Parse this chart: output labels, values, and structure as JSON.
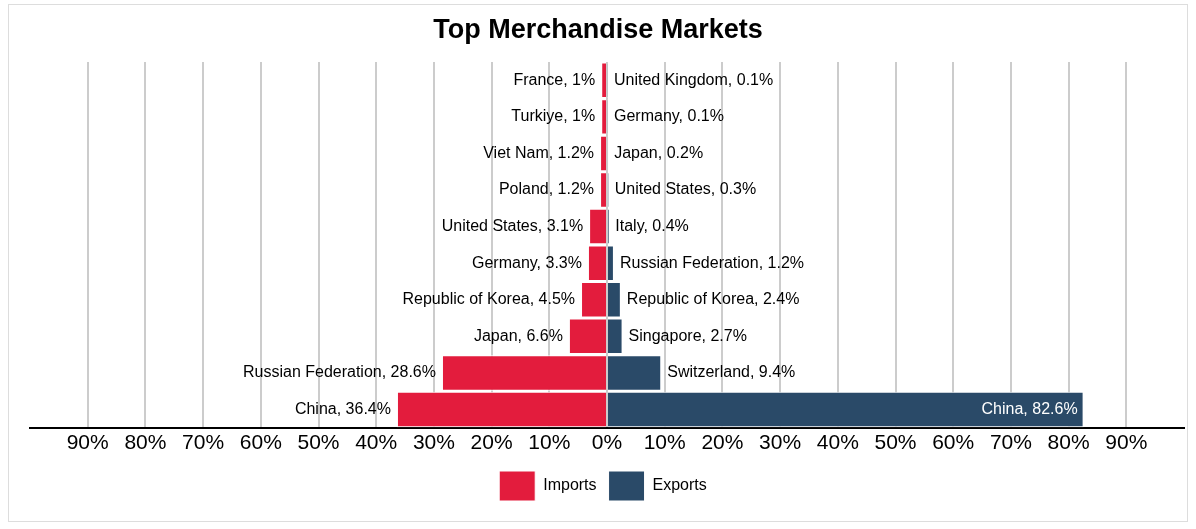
{
  "chart_data": {
    "type": "bar",
    "orientation": "horizontal",
    "title": "Top Merchandise Markets",
    "categories": [
      null,
      null,
      null,
      null,
      null,
      null,
      null,
      null,
      null,
      null
    ],
    "series": [
      {
        "name": "Imports",
        "color": "#e31c3d",
        "values": [
          1,
          1,
          1.2,
          1.2,
          3.1,
          3.3,
          4.5,
          6.6,
          28.6,
          36.4
        ],
        "base": [
          -1,
          -1,
          -1.2,
          -1.2,
          -3.1,
          -3.3,
          -4.5,
          -6.6,
          -28.6,
          -36.4
        ],
        "value_labels": [
          "France, 1%",
          "Turkiye, 1%",
          "Viet Nam, 1.2%",
          "Poland, 1.2%",
          "United States, 3.1%",
          "Germany, 3.3%",
          "Republic of Korea, 4.5%",
          "Japan, 6.6%",
          "Russian Federation, 28.6%",
          "China, 36.4%"
        ]
      },
      {
        "name": "Exports",
        "color": "#2a4a68",
        "values": [
          0.1,
          0.1,
          0.2,
          0.3,
          0.4,
          1.2,
          2.4,
          2.7,
          9.4,
          82.6
        ],
        "value_labels": [
          "United Kingdom, 0.1%",
          "Germany, 0.1%",
          "Japan, 0.2%",
          "United States, 0.3%",
          "Italy, 0.4%",
          "Russian Federation, 1.2%",
          "Republic of Korea, 2.4%",
          "Singapore, 2.7%",
          "Switzerland, 9.4%",
          "China, 82.6%"
        ]
      }
    ],
    "xlim": [
      -100,
      100
    ],
    "xticks": [
      {
        "value": -90,
        "label": "90%"
      },
      {
        "value": -80,
        "label": "80%"
      },
      {
        "value": -70,
        "label": "70%"
      },
      {
        "value": -60,
        "label": "60%"
      },
      {
        "value": -50,
        "label": "50%"
      },
      {
        "value": -40,
        "label": "40%"
      },
      {
        "value": -30,
        "label": "30%"
      },
      {
        "value": -20,
        "label": "20%"
      },
      {
        "value": -10,
        "label": "10%"
      },
      {
        "value": 0,
        "label": "0%"
      },
      {
        "value": 10,
        "label": "10%"
      },
      {
        "value": 20,
        "label": "20%"
      },
      {
        "value": 30,
        "label": "30%"
      },
      {
        "value": 40,
        "label": "40%"
      },
      {
        "value": 50,
        "label": "50%"
      },
      {
        "value": 60,
        "label": "60%"
      },
      {
        "value": 70,
        "label": "70%"
      },
      {
        "value": 80,
        "label": "80%"
      },
      {
        "value": 90,
        "label": "90%"
      }
    ],
    "grid": "x",
    "legend": "bottom",
    "tick_labels": "x"
  }
}
